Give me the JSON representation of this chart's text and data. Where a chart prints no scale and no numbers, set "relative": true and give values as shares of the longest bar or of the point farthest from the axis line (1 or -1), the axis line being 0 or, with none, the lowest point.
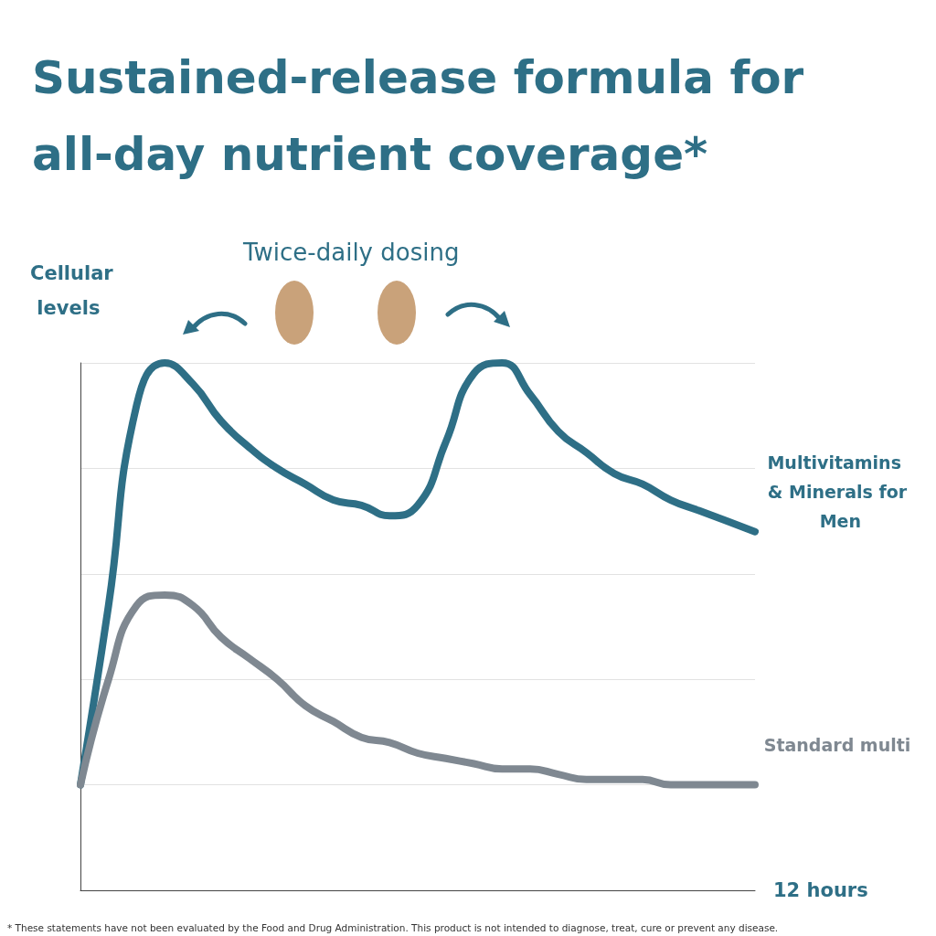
{
  "chart_data": {
    "type": "line",
    "title": "Sustained-release formula for all-day nutrient coverage*",
    "ylabel": "Cellular levels",
    "xlabel": "12 hours",
    "relative": true,
    "grid": "y",
    "legend": false,
    "marker": "none",
    "line_style": "solid",
    "categories": [
      null,
      null,
      null,
      null,
      null,
      null,
      null,
      null,
      null,
      null,
      null,
      null,
      null,
      null,
      null,
      null,
      null,
      null,
      null,
      null,
      null,
      null,
      null,
      null,
      null
    ],
    "series": [
      {
        "name": "Multivitamins & Minerals for Men",
        "color": "#2e6f86",
        "values": [
          0.2,
          0.54,
          0.92,
          1.0,
          0.96,
          0.89,
          0.84,
          0.8,
          0.77,
          0.74,
          0.73,
          0.71,
          0.73,
          0.85,
          0.98,
          1.0,
          0.94,
          0.87,
          0.83,
          0.79,
          0.77,
          0.74,
          0.72,
          0.7,
          0.68
        ]
      },
      {
        "name": "Standard multi",
        "color": "#7f8891",
        "values": [
          0.2,
          0.4,
          0.54,
          0.56,
          0.54,
          0.48,
          0.44,
          0.4,
          0.35,
          0.32,
          0.29,
          0.28,
          0.26,
          0.25,
          0.24,
          0.23,
          0.23,
          0.22,
          0.21,
          0.21,
          0.21,
          0.2,
          0.2,
          0.2,
          0.2
        ]
      }
    ],
    "annotations": [
      "Twice-daily dosing",
      "* These statements have not been evaluated by the Food and Drug Administration. This product is not intended to diagnose, treat, cure or prevent any disease."
    ]
  }
}
